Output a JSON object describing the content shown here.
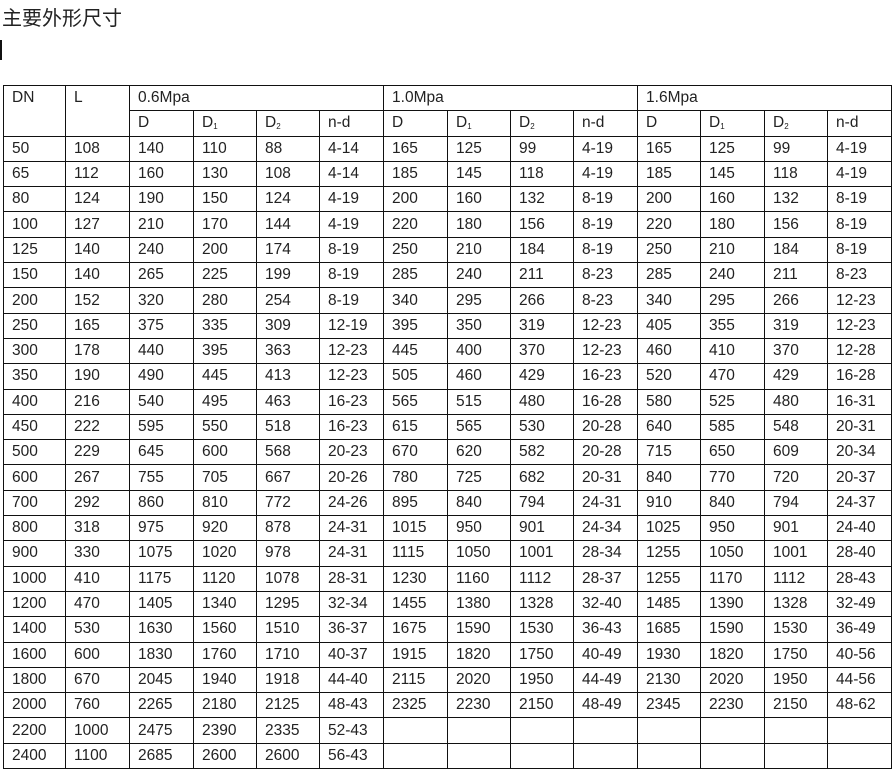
{
  "title": "主要外形尺寸",
  "table": {
    "col_dn": "DN",
    "col_l": "L",
    "pressure_groups": [
      "0.6Mpa",
      "1.0Mpa",
      "1.6Mpa"
    ],
    "sub_columns": [
      {
        "base": "D",
        "sub": ""
      },
      {
        "base": "D",
        "sub": "1"
      },
      {
        "base": "D",
        "sub": "2"
      },
      {
        "base": "n-d",
        "sub": ""
      }
    ],
    "rows": [
      [
        "50",
        "108",
        "140",
        "110",
        "88",
        "4-14",
        "165",
        "125",
        "99",
        "4-19",
        "165",
        "125",
        "99",
        "4-19"
      ],
      [
        "65",
        "112",
        "160",
        "130",
        "108",
        "4-14",
        "185",
        "145",
        "118",
        "4-19",
        "185",
        "145",
        "118",
        "4-19"
      ],
      [
        "80",
        "124",
        "190",
        "150",
        "124",
        "4-19",
        "200",
        "160",
        "132",
        "8-19",
        "200",
        "160",
        "132",
        "8-19"
      ],
      [
        "100",
        "127",
        "210",
        "170",
        "144",
        "4-19",
        "220",
        "180",
        "156",
        "8-19",
        "220",
        "180",
        "156",
        "8-19"
      ],
      [
        "125",
        "140",
        "240",
        "200",
        "174",
        "8-19",
        "250",
        "210",
        "184",
        "8-19",
        "250",
        "210",
        "184",
        "8-19"
      ],
      [
        "150",
        "140",
        "265",
        "225",
        "199",
        "8-19",
        "285",
        "240",
        "211",
        "8-23",
        "285",
        "240",
        "211",
        "8-23"
      ],
      [
        "200",
        "152",
        "320",
        "280",
        "254",
        "8-19",
        "340",
        "295",
        "266",
        "8-23",
        "340",
        "295",
        "266",
        "12-23"
      ],
      [
        "250",
        "165",
        "375",
        "335",
        "309",
        "12-19",
        "395",
        "350",
        "319",
        "12-23",
        "405",
        "355",
        "319",
        "12-23"
      ],
      [
        "300",
        "178",
        "440",
        "395",
        "363",
        "12-23",
        "445",
        "400",
        "370",
        "12-23",
        "460",
        "410",
        "370",
        "12-28"
      ],
      [
        "350",
        "190",
        "490",
        "445",
        "413",
        "12-23",
        "505",
        "460",
        "429",
        "16-23",
        "520",
        "470",
        "429",
        "16-28"
      ],
      [
        "400",
        "216",
        "540",
        "495",
        "463",
        "16-23",
        "565",
        "515",
        "480",
        "16-28",
        "580",
        "525",
        "480",
        "16-31"
      ],
      [
        "450",
        "222",
        "595",
        "550",
        "518",
        "16-23",
        "615",
        "565",
        "530",
        "20-28",
        "640",
        "585",
        "548",
        "20-31"
      ],
      [
        "500",
        "229",
        "645",
        "600",
        "568",
        "20-23",
        "670",
        "620",
        "582",
        "20-28",
        "715",
        "650",
        "609",
        "20-34"
      ],
      [
        "600",
        "267",
        "755",
        "705",
        "667",
        "20-26",
        "780",
        "725",
        "682",
        "20-31",
        "840",
        "770",
        "720",
        "20-37"
      ],
      [
        "700",
        "292",
        "860",
        "810",
        "772",
        "24-26",
        "895",
        "840",
        "794",
        "24-31",
        "910",
        "840",
        "794",
        "24-37"
      ],
      [
        "800",
        "318",
        "975",
        "920",
        "878",
        "24-31",
        "1015",
        "950",
        "901",
        "24-34",
        "1025",
        "950",
        "901",
        "24-40"
      ],
      [
        "900",
        "330",
        "1075",
        "1020",
        "978",
        "24-31",
        "1115",
        "1050",
        "1001",
        "28-34",
        "1255",
        "1050",
        "1001",
        "28-40"
      ],
      [
        "1000",
        "410",
        "1175",
        "1120",
        "1078",
        "28-31",
        "1230",
        "1160",
        "1112",
        "28-37",
        "1255",
        "1170",
        "1112",
        "28-43"
      ],
      [
        "1200",
        "470",
        "1405",
        "1340",
        "1295",
        "32-34",
        "1455",
        "1380",
        "1328",
        "32-40",
        "1485",
        "1390",
        "1328",
        "32-49"
      ],
      [
        "1400",
        "530",
        "1630",
        "1560",
        "1510",
        "36-37",
        "1675",
        "1590",
        "1530",
        "36-43",
        "1685",
        "1590",
        "1530",
        "36-49"
      ],
      [
        "1600",
        "600",
        "1830",
        "1760",
        "1710",
        "40-37",
        "1915",
        "1820",
        "1750",
        "40-49",
        "1930",
        "1820",
        "1750",
        "40-56"
      ],
      [
        "1800",
        "670",
        "2045",
        "1940",
        "1918",
        "44-40",
        "2115",
        "2020",
        "1950",
        "44-49",
        "2130",
        "2020",
        "1950",
        "44-56"
      ],
      [
        "2000",
        "760",
        "2265",
        "2180",
        "2125",
        "48-43",
        "2325",
        "2230",
        "2150",
        "48-49",
        "2345",
        "2230",
        "2150",
        "48-62"
      ],
      [
        "2200",
        "1000",
        "2475",
        "2390",
        "2335",
        "52-43",
        "",
        "",
        "",
        "",
        "",
        "",
        "",
        ""
      ],
      [
        "2400",
        "1100",
        "2685",
        "2600",
        "2600",
        "56-43",
        "",
        "",
        "",
        "",
        "",
        "",
        "",
        ""
      ]
    ]
  }
}
